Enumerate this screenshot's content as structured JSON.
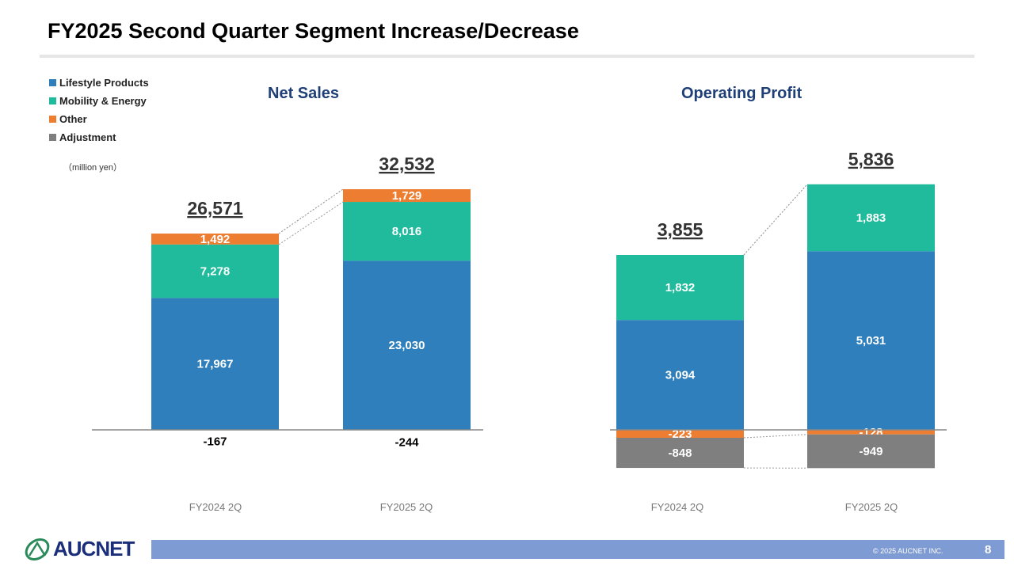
{
  "page": {
    "title": "FY2025 Second Quarter Segment Increase/Decrease",
    "unit": "（million yen）",
    "copyright": "© 2025 AUCNET INC.",
    "page_number": "8",
    "logo_text": "AUCNET"
  },
  "legend": [
    {
      "name": "Lifestyle Products",
      "color": "#2e7fbb"
    },
    {
      "name": "Mobility & Energy",
      "color": "#1fbb9c"
    },
    {
      "name": "Other",
      "color": "#ed7d31"
    },
    {
      "name": "Adjustment",
      "color": "#7f7f7f"
    }
  ],
  "chart_data": [
    {
      "type": "bar",
      "stacked": true,
      "title": "Net Sales",
      "categories": [
        "FY2024 2Q",
        "FY2025 2Q"
      ],
      "totals": [
        "26,571",
        "32,532"
      ],
      "series": [
        {
          "name": "Lifestyle Products",
          "values": [
            17967,
            23030
          ],
          "labels": [
            "17,967",
            "23,030"
          ]
        },
        {
          "name": "Mobility & Energy",
          "values": [
            7278,
            8016
          ],
          "labels": [
            "7,278",
            "8,016"
          ]
        },
        {
          "name": "Other",
          "values": [
            1492,
            1729
          ],
          "labels": [
            "1,492",
            "1,729"
          ]
        },
        {
          "name": "Adjustment",
          "values": [
            -167,
            -244
          ],
          "labels": [
            "-167",
            "-244"
          ]
        }
      ]
    },
    {
      "type": "bar",
      "stacked": true,
      "title": "Operating Profit",
      "categories": [
        "FY2024 2Q",
        "FY2025 2Q"
      ],
      "totals": [
        "3,855",
        "5,836"
      ],
      "series": [
        {
          "name": "Lifestyle Products",
          "values": [
            3094,
            5031
          ],
          "labels": [
            "3,094",
            "5,031"
          ]
        },
        {
          "name": "Mobility & Energy",
          "values": [
            1832,
            1883
          ],
          "labels": [
            "1,832",
            "1,883"
          ]
        },
        {
          "name": "Other",
          "values": [
            -223,
            -128
          ],
          "labels": [
            "-223",
            "-128"
          ]
        },
        {
          "name": "Adjustment",
          "values": [
            -848,
            -949
          ],
          "labels": [
            "-848",
            "-949"
          ]
        }
      ]
    }
  ]
}
